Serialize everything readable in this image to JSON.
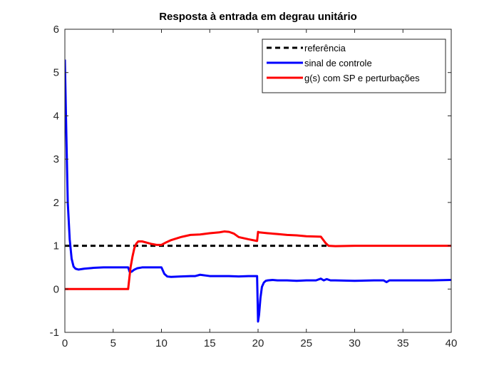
{
  "chart_data": {
    "type": "line",
    "title": "Resposta à entrada em degrau unitário",
    "xlabel": "",
    "ylabel": "",
    "xlim": [
      0,
      40
    ],
    "ylim": [
      -1,
      6
    ],
    "xticks": [
      0,
      5,
      10,
      15,
      20,
      25,
      30,
      35,
      40
    ],
    "yticks": [
      -1,
      0,
      1,
      2,
      3,
      4,
      5,
      6
    ],
    "grid": false,
    "legend_position": "top-right",
    "series": [
      {
        "name": "referência",
        "color": "#000000",
        "style": "dashed",
        "x": [
          0,
          27.2
        ],
        "y": [
          1,
          1
        ]
      },
      {
        "name": "sinal de controle",
        "color": "#0000ff",
        "style": "solid",
        "x": [
          0,
          0.15,
          0.3,
          0.5,
          0.7,
          0.9,
          1.1,
          1.4,
          1.7,
          2.0,
          3,
          4,
          5,
          6,
          6.55,
          6.7,
          6.9,
          7.2,
          7.5,
          8,
          8.5,
          9,
          9.5,
          10,
          10.3,
          10.6,
          11,
          12,
          13,
          13.5,
          14,
          15,
          16,
          17,
          18,
          19,
          19.7,
          19.9,
          20.0,
          20.1,
          20.25,
          20.4,
          20.6,
          20.8,
          21,
          21.5,
          22,
          23,
          24,
          25,
          26,
          26.5,
          26.8,
          27.1,
          27.5,
          28,
          30,
          32,
          33,
          33.3,
          33.6,
          34,
          36,
          38,
          40
        ],
        "y": [
          5.3,
          3.6,
          2.0,
          1.15,
          0.7,
          0.52,
          0.47,
          0.45,
          0.46,
          0.47,
          0.49,
          0.5,
          0.5,
          0.5,
          0.5,
          0.4,
          0.4,
          0.45,
          0.48,
          0.5,
          0.5,
          0.5,
          0.5,
          0.5,
          0.35,
          0.29,
          0.28,
          0.29,
          0.3,
          0.3,
          0.33,
          0.3,
          0.3,
          0.3,
          0.29,
          0.3,
          0.3,
          0.3,
          -0.75,
          -0.6,
          -0.2,
          0.05,
          0.15,
          0.19,
          0.2,
          0.21,
          0.2,
          0.2,
          0.19,
          0.2,
          0.2,
          0.24,
          0.2,
          0.23,
          0.2,
          0.2,
          0.19,
          0.2,
          0.2,
          0.16,
          0.2,
          0.2,
          0.2,
          0.2,
          0.21
        ]
      },
      {
        "name": "g(s) com SP e perturbações",
        "color": "#ff0000",
        "style": "solid",
        "x": [
          0,
          6.55,
          6.65,
          6.8,
          7.0,
          7.2,
          7.4,
          7.6,
          8,
          8.5,
          9,
          9.5,
          10,
          10.5,
          11,
          12,
          13,
          14,
          15,
          16,
          16.5,
          17,
          17.5,
          18,
          19,
          19.9,
          20.0,
          20.1,
          21,
          22,
          23,
          24,
          25,
          26.5,
          26.8,
          27,
          27.3,
          28,
          30,
          35,
          40
        ],
        "y": [
          0,
          0,
          0.2,
          0.5,
          0.75,
          0.95,
          1.05,
          1.1,
          1.1,
          1.07,
          1.04,
          1.02,
          1.02,
          1.08,
          1.13,
          1.2,
          1.25,
          1.26,
          1.29,
          1.31,
          1.33,
          1.32,
          1.28,
          1.2,
          1.15,
          1.11,
          1.32,
          1.31,
          1.29,
          1.27,
          1.25,
          1.24,
          1.22,
          1.21,
          1.12,
          1.06,
          1.0,
          0.99,
          1.0,
          1.0,
          1.0
        ]
      }
    ]
  }
}
